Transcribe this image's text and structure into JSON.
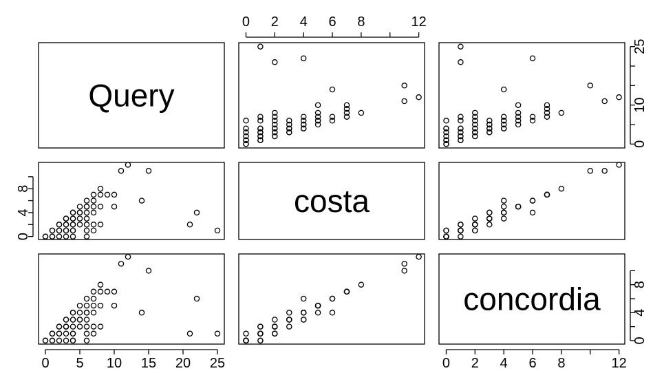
{
  "chart_data": {
    "type": "scatter",
    "variables": [
      {
        "name": "Query",
        "lim": [
          -1,
          26
        ],
        "ticks": [
          0,
          5,
          10,
          15,
          20,
          25
        ],
        "tick_labels": [
          "0",
          "5",
          "10",
          "15",
          "20",
          "25"
        ],
        "tick_labels_right": [
          "0",
          "10",
          "25"
        ],
        "ticks_right": [
          0,
          10,
          25
        ],
        "ticks_right_unlabeled": [
          5,
          15,
          20
        ]
      },
      {
        "name": "costa",
        "lim": [
          -0.5,
          12.4
        ],
        "ticks": [
          0,
          2,
          4,
          6,
          8,
          10,
          12
        ],
        "tick_labels": [
          "0",
          "2",
          "4",
          "6",
          "8",
          "",
          "12"
        ],
        "ticks_left": [
          0,
          2,
          4,
          6,
          8,
          10
        ],
        "tick_labels_left": [
          "0",
          "",
          "4",
          "",
          "8",
          ""
        ]
      },
      {
        "name": "concordia",
        "lim": [
          -0.5,
          12.4
        ],
        "ticks": [
          0,
          2,
          4,
          6,
          8,
          10,
          12
        ],
        "tick_labels": [
          "0",
          "2",
          "4",
          "6",
          "8",
          "",
          "12"
        ],
        "ticks_right": [
          0,
          2,
          4,
          6,
          8,
          10
        ],
        "tick_labels_right": [
          "0",
          "",
          "4",
          "",
          "8",
          ""
        ]
      }
    ],
    "observations": [
      [
        0,
        0,
        0
      ],
      [
        0,
        0,
        0
      ],
      [
        1,
        0,
        0
      ],
      [
        1,
        0,
        1
      ],
      [
        1,
        1,
        0
      ],
      [
        1,
        1,
        1
      ],
      [
        2,
        0,
        0
      ],
      [
        2,
        1,
        1
      ],
      [
        2,
        2,
        2
      ],
      [
        2,
        2,
        1
      ],
      [
        2,
        1,
        2
      ],
      [
        3,
        0,
        0
      ],
      [
        3,
        1,
        1
      ],
      [
        3,
        2,
        2
      ],
      [
        3,
        3,
        2
      ],
      [
        3,
        3,
        3
      ],
      [
        3,
        2,
        3
      ],
      [
        3,
        1,
        2
      ],
      [
        4,
        0,
        0
      ],
      [
        4,
        1,
        1
      ],
      [
        4,
        2,
        2
      ],
      [
        4,
        3,
        3
      ],
      [
        4,
        4,
        4
      ],
      [
        4,
        4,
        3
      ],
      [
        4,
        3,
        4
      ],
      [
        4,
        2,
        1
      ],
      [
        4,
        1,
        0
      ],
      [
        5,
        3,
        3
      ],
      [
        5,
        4,
        4
      ],
      [
        5,
        5,
        5
      ],
      [
        5,
        2,
        2
      ],
      [
        5,
        4,
        3
      ],
      [
        6,
        0,
        0
      ],
      [
        6,
        1,
        1
      ],
      [
        6,
        2,
        2
      ],
      [
        6,
        3,
        3
      ],
      [
        6,
        4,
        4
      ],
      [
        6,
        5,
        5
      ],
      [
        6,
        6,
        6
      ],
      [
        6,
        5,
        4
      ],
      [
        7,
        4,
        4
      ],
      [
        7,
        5,
        5
      ],
      [
        7,
        6,
        6
      ],
      [
        7,
        7,
        7
      ],
      [
        7,
        2,
        2
      ],
      [
        7,
        1,
        1
      ],
      [
        8,
        2,
        2
      ],
      [
        8,
        5,
        5
      ],
      [
        8,
        7,
        7
      ],
      [
        8,
        8,
        8
      ],
      [
        9,
        7,
        7
      ],
      [
        10,
        7,
        7
      ],
      [
        10,
        5,
        5
      ],
      [
        11,
        11,
        11
      ],
      [
        12,
        12,
        12
      ],
      [
        14,
        6,
        4
      ],
      [
        15,
        11,
        10
      ],
      [
        21,
        2,
        1
      ],
      [
        22,
        4,
        6
      ],
      [
        25,
        1,
        1
      ]
    ],
    "grid": false,
    "legend": "none"
  }
}
